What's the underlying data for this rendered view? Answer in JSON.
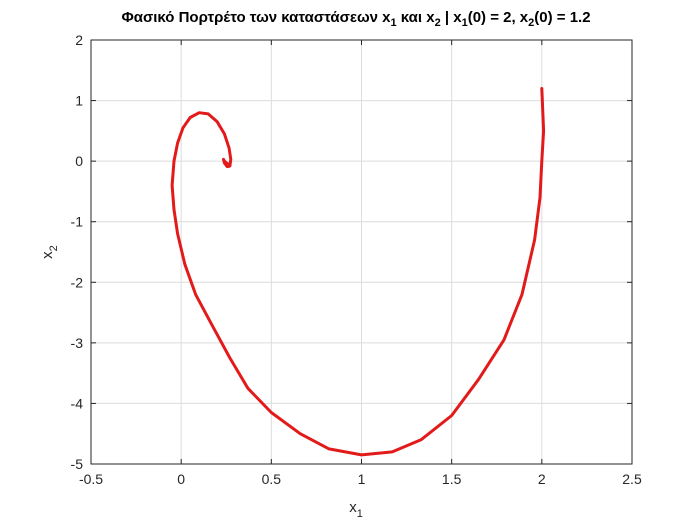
{
  "chart_data": {
    "type": "line",
    "title": {
      "prefix": "Φασικό Πορτρέτο των καταστάσεων x",
      "sub1": "1",
      "mid1": " και x",
      "sub2": "2",
      "mid2": " | x",
      "sub3": "1",
      "mid3": "(0) = 2, x",
      "sub4": "2",
      "suffix": "(0) = 1.2"
    },
    "xlabel": {
      "base": "x",
      "sub": "1"
    },
    "ylabel": {
      "base": "x",
      "sub": "2"
    },
    "xlim": [
      -0.5,
      2.5
    ],
    "ylim": [
      -5,
      2
    ],
    "xticks": [
      -0.5,
      0,
      0.5,
      1,
      1.5,
      2,
      2.5
    ],
    "xtick_labels": [
      "-0.5",
      "0",
      "0.5",
      "1",
      "1.5",
      "2",
      "2.5"
    ],
    "yticks": [
      -5,
      -4,
      -3,
      -2,
      -1,
      0,
      1,
      2
    ],
    "ytick_labels": [
      "-5",
      "-4",
      "-3",
      "-2",
      "-1",
      "0",
      "1",
      "2"
    ],
    "grid": true,
    "series": [
      {
        "color": "#e31a1a",
        "x": [
          2.0,
          2.01,
          2.0,
          1.99,
          1.96,
          1.89,
          1.79,
          1.65,
          1.5,
          1.33,
          1.17,
          1.0,
          0.82,
          0.66,
          0.5,
          0.37,
          0.27,
          0.17,
          0.08,
          0.02,
          -0.02,
          -0.04,
          -0.05,
          -0.04,
          -0.02,
          0.01,
          0.05,
          0.1,
          0.15,
          0.2,
          0.24,
          0.265,
          0.275,
          0.27,
          0.255,
          0.24,
          0.235,
          0.24,
          0.255,
          0.265
        ],
        "y": [
          1.2,
          0.5,
          0.0,
          -0.6,
          -1.3,
          -2.2,
          -2.95,
          -3.6,
          -4.2,
          -4.6,
          -4.8,
          -4.85,
          -4.75,
          -4.5,
          -4.15,
          -3.75,
          -3.25,
          -2.7,
          -2.2,
          -1.7,
          -1.2,
          -0.8,
          -0.4,
          0.0,
          0.3,
          0.55,
          0.72,
          0.8,
          0.78,
          0.65,
          0.45,
          0.22,
          0.03,
          -0.08,
          -0.09,
          -0.03,
          0.03,
          0.0,
          -0.04,
          -0.05
        ]
      }
    ]
  }
}
